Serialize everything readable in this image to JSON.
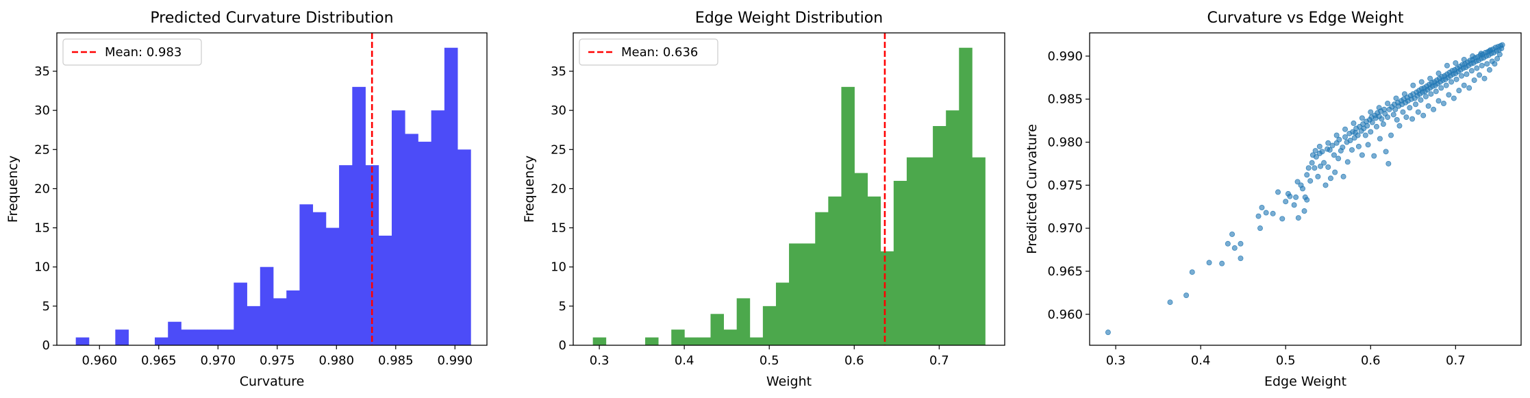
{
  "chart_data": [
    {
      "type": "bar",
      "title": "Predicted Curvature Distribution",
      "xlabel": "Curvature",
      "ylabel": "Frequency",
      "xlim": [
        0.9564,
        0.9927
      ],
      "ylim": [
        0,
        39.9
      ],
      "xticks": [
        "0.960",
        "0.965",
        "0.970",
        "0.975",
        "0.980",
        "0.985",
        "0.990"
      ],
      "yticks": [
        "0",
        "5",
        "10",
        "15",
        "20",
        "25",
        "30",
        "35"
      ],
      "bin_start": 0.958,
      "bin_width": 0.001111,
      "values": [
        1,
        0,
        0,
        2,
        0,
        0,
        1,
        3,
        2,
        2,
        2,
        2,
        8,
        5,
        10,
        6,
        7,
        18,
        17,
        15,
        23,
        33,
        23,
        14,
        30,
        27,
        26,
        30,
        38,
        25
      ],
      "color": "#4c4cf8",
      "mean": 0.983,
      "legend": "Mean: 0.983",
      "legend_position": "upper-left",
      "mean_color": "#ff0000"
    },
    {
      "type": "bar",
      "title": "Edge Weight Distribution",
      "xlabel": "Weight",
      "ylabel": "Frequency",
      "xlim": [
        0.2693,
        0.7771
      ],
      "ylim": [
        0,
        39.9
      ],
      "xticks": [
        "0.3",
        "0.4",
        "0.5",
        "0.6",
        "0.7"
      ],
      "yticks": [
        "0",
        "5",
        "10",
        "15",
        "20",
        "25",
        "30",
        "35"
      ],
      "bin_start": 0.2924,
      "bin_width": 0.01539,
      "values": [
        1,
        0,
        0,
        0,
        1,
        0,
        2,
        1,
        1,
        4,
        2,
        6,
        1,
        5,
        8,
        13,
        13,
        17,
        19,
        33,
        22,
        19,
        12,
        21,
        24,
        24,
        28,
        30,
        38,
        24
      ],
      "color": "#4ca84c",
      "mean": 0.636,
      "legend": "Mean: 0.636",
      "legend_position": "upper-left",
      "mean_color": "#ff0000"
    },
    {
      "type": "scatter",
      "title": "Curvature vs Edge Weight",
      "xlabel": "Edge Weight",
      "ylabel": "Predicted Curvature",
      "xlim": [
        0.2693,
        0.7771
      ],
      "ylim": [
        0.9564,
        0.9927
      ],
      "xticks": [
        "0.3",
        "0.4",
        "0.5",
        "0.6",
        "0.7"
      ],
      "yticks": [
        "0.960",
        "0.965",
        "0.970",
        "0.975",
        "0.980",
        "0.985",
        "0.990"
      ],
      "color": "#1f77b4",
      "points": [
        [
          0.291,
          0.9579
        ],
        [
          0.364,
          0.9614
        ],
        [
          0.383,
          0.9622
        ],
        [
          0.39,
          0.9649
        ],
        [
          0.41,
          0.966
        ],
        [
          0.425,
          0.9659
        ],
        [
          0.432,
          0.9682
        ],
        [
          0.437,
          0.9693
        ],
        [
          0.44,
          0.9677
        ],
        [
          0.447,
          0.9665
        ],
        [
          0.447,
          0.9682
        ],
        [
          0.468,
          0.9714
        ],
        [
          0.47,
          0.97
        ],
        [
          0.472,
          0.9724
        ],
        [
          0.477,
          0.9718
        ],
        [
          0.485,
          0.9717
        ],
        [
          0.491,
          0.9742
        ],
        [
          0.496,
          0.9711
        ],
        [
          0.5,
          0.9731
        ],
        [
          0.503,
          0.974
        ],
        [
          0.505,
          0.9737
        ],
        [
          0.51,
          0.9727
        ],
        [
          0.512,
          0.9736
        ],
        [
          0.514,
          0.9754
        ],
        [
          0.515,
          0.9712
        ],
        [
          0.518,
          0.975
        ],
        [
          0.52,
          0.9746
        ],
        [
          0.522,
          0.972
        ],
        [
          0.523,
          0.9736
        ],
        [
          0.525,
          0.9733
        ],
        [
          0.525,
          0.9762
        ],
        [
          0.527,
          0.977
        ],
        [
          0.529,
          0.9755
        ],
        [
          0.531,
          0.9776
        ],
        [
          0.532,
          0.9785
        ],
        [
          0.534,
          0.977
        ],
        [
          0.536,
          0.9783
        ],
        [
          0.538,
          0.976
        ],
        [
          0.54,
          0.9787
        ],
        [
          0.541,
          0.9772
        ],
        [
          0.543,
          0.9789
        ],
        [
          0.545,
          0.9776
        ],
        [
          0.547,
          0.975
        ],
        [
          0.549,
          0.9792
        ],
        [
          0.55,
          0.9771
        ],
        [
          0.552,
          0.9791
        ],
        [
          0.553,
          0.9758
        ],
        [
          0.555,
          0.9796
        ],
        [
          0.557,
          0.9785
        ],
        [
          0.558,
          0.9765
        ],
        [
          0.56,
          0.9799
        ],
        [
          0.562,
          0.9781
        ],
        [
          0.563,
          0.9803
        ],
        [
          0.565,
          0.979
        ],
        [
          0.567,
          0.9794
        ],
        [
          0.568,
          0.976
        ],
        [
          0.57,
          0.9806
        ],
        [
          0.572,
          0.98
        ],
        [
          0.573,
          0.9777
        ],
        [
          0.575,
          0.981
        ],
        [
          0.576,
          0.9802
        ],
        [
          0.578,
          0.9791
        ],
        [
          0.579,
          0.9812
        ],
        [
          0.581,
          0.9805
        ],
        [
          0.582,
          0.9811
        ],
        [
          0.583,
          0.9816
        ],
        [
          0.585,
          0.9808
        ],
        [
          0.586,
          0.9795
        ],
        [
          0.587,
          0.9818
        ],
        [
          0.589,
          0.9813
        ],
        [
          0.59,
          0.9785
        ],
        [
          0.591,
          0.9821
        ],
        [
          0.592,
          0.9816
        ],
        [
          0.594,
          0.9808
        ],
        [
          0.595,
          0.9824
        ],
        [
          0.596,
          0.9819
        ],
        [
          0.597,
          0.9797
        ],
        [
          0.599,
          0.9826
        ],
        [
          0.6,
          0.9812
        ],
        [
          0.601,
          0.9829
        ],
        [
          0.602,
          0.9823
        ],
        [
          0.604,
          0.9784
        ],
        [
          0.605,
          0.9831
        ],
        [
          0.606,
          0.9828
        ],
        [
          0.607,
          0.9818
        ],
        [
          0.608,
          0.9834
        ],
        [
          0.61,
          0.983
        ],
        [
          0.611,
          0.9804
        ],
        [
          0.612,
          0.9836
        ],
        [
          0.613,
          0.9827
        ],
        [
          0.615,
          0.9821
        ],
        [
          0.616,
          0.9838
        ],
        [
          0.617,
          0.9833
        ],
        [
          0.618,
          0.9789
        ],
        [
          0.62,
          0.9829
        ],
        [
          0.621,
          0.9775
        ],
        [
          0.622,
          0.9838
        ],
        [
          0.624,
          0.9808
        ],
        [
          0.625,
          0.9841
        ],
        [
          0.627,
          0.9832
        ],
        [
          0.628,
          0.9844
        ],
        [
          0.629,
          0.9838
        ],
        [
          0.631,
          0.9826
        ],
        [
          0.632,
          0.9846
        ],
        [
          0.633,
          0.9842
        ],
        [
          0.634,
          0.9819
        ],
        [
          0.636,
          0.9848
        ],
        [
          0.637,
          0.9844
        ],
        [
          0.638,
          0.9835
        ],
        [
          0.639,
          0.985
        ],
        [
          0.641,
          0.9846
        ],
        [
          0.642,
          0.9829
        ],
        [
          0.643,
          0.9852
        ],
        [
          0.644,
          0.9848
        ],
        [
          0.646,
          0.984
        ],
        [
          0.647,
          0.9854
        ],
        [
          0.648,
          0.985
        ],
        [
          0.649,
          0.9827
        ],
        [
          0.65,
          0.9856
        ],
        [
          0.652,
          0.9851
        ],
        [
          0.653,
          0.9844
        ],
        [
          0.654,
          0.9858
        ],
        [
          0.655,
          0.9854
        ],
        [
          0.656,
          0.9835
        ],
        [
          0.657,
          0.986
        ],
        [
          0.658,
          0.9856
        ],
        [
          0.659,
          0.9849
        ],
        [
          0.66,
          0.9862
        ],
        [
          0.661,
          0.9858
        ],
        [
          0.662,
          0.9831
        ],
        [
          0.663,
          0.9863
        ],
        [
          0.664,
          0.9859
        ],
        [
          0.665,
          0.9853
        ],
        [
          0.666,
          0.9865
        ],
        [
          0.667,
          0.9861
        ],
        [
          0.668,
          0.9842
        ],
        [
          0.669,
          0.9867
        ],
        [
          0.67,
          0.9863
        ],
        [
          0.671,
          0.9856
        ],
        [
          0.672,
          0.9869
        ],
        [
          0.673,
          0.9865
        ],
        [
          0.674,
          0.9838
        ],
        [
          0.675,
          0.987
        ],
        [
          0.676,
          0.9866
        ],
        [
          0.677,
          0.9859
        ],
        [
          0.678,
          0.9872
        ],
        [
          0.679,
          0.9868
        ],
        [
          0.68,
          0.9848
        ],
        [
          0.681,
          0.9874
        ],
        [
          0.682,
          0.987
        ],
        [
          0.683,
          0.9863
        ],
        [
          0.684,
          0.9876
        ],
        [
          0.685,
          0.9872
        ],
        [
          0.686,
          0.9845
        ],
        [
          0.687,
          0.9877
        ],
        [
          0.688,
          0.9873
        ],
        [
          0.689,
          0.9866
        ],
        [
          0.69,
          0.9879
        ],
        [
          0.691,
          0.9875
        ],
        [
          0.692,
          0.9855
        ],
        [
          0.693,
          0.9881
        ],
        [
          0.694,
          0.9877
        ],
        [
          0.695,
          0.987
        ],
        [
          0.696,
          0.9883
        ],
        [
          0.697,
          0.9879
        ],
        [
          0.698,
          0.9851
        ],
        [
          0.699,
          0.9884
        ],
        [
          0.7,
          0.988
        ],
        [
          0.701,
          0.9873
        ],
        [
          0.702,
          0.9886
        ],
        [
          0.703,
          0.9882
        ],
        [
          0.704,
          0.986
        ],
        [
          0.705,
          0.9888
        ],
        [
          0.706,
          0.9884
        ],
        [
          0.707,
          0.9877
        ],
        [
          0.708,
          0.989
        ],
        [
          0.709,
          0.9886
        ],
        [
          0.71,
          0.9866
        ],
        [
          0.711,
          0.9891
        ],
        [
          0.712,
          0.9887
        ],
        [
          0.713,
          0.9879
        ],
        [
          0.714,
          0.9893
        ],
        [
          0.715,
          0.9889
        ],
        [
          0.716,
          0.9863
        ],
        [
          0.717,
          0.9895
        ],
        [
          0.718,
          0.9891
        ],
        [
          0.719,
          0.9883
        ],
        [
          0.72,
          0.9896
        ],
        [
          0.721,
          0.9892
        ],
        [
          0.722,
          0.9872
        ],
        [
          0.723,
          0.9898
        ],
        [
          0.724,
          0.9894
        ],
        [
          0.725,
          0.9886
        ],
        [
          0.726,
          0.9899
        ],
        [
          0.727,
          0.9895
        ],
        [
          0.728,
          0.9878
        ],
        [
          0.729,
          0.9901
        ],
        [
          0.73,
          0.9897
        ],
        [
          0.731,
          0.9889
        ],
        [
          0.732,
          0.9902
        ],
        [
          0.733,
          0.9898
        ],
        [
          0.734,
          0.9874
        ],
        [
          0.735,
          0.9904
        ],
        [
          0.736,
          0.99
        ],
        [
          0.737,
          0.9891
        ],
        [
          0.738,
          0.9905
        ],
        [
          0.739,
          0.9901
        ],
        [
          0.74,
          0.9884
        ],
        [
          0.741,
          0.9907
        ],
        [
          0.742,
          0.9903
        ],
        [
          0.743,
          0.9894
        ],
        [
          0.744,
          0.9908
        ],
        [
          0.745,
          0.9904
        ],
        [
          0.746,
          0.9891
        ],
        [
          0.747,
          0.991
        ],
        [
          0.748,
          0.9906
        ],
        [
          0.749,
          0.9897
        ],
        [
          0.75,
          0.9911
        ],
        [
          0.751,
          0.9907
        ],
        [
          0.752,
          0.9902
        ],
        [
          0.753,
          0.9912
        ],
        [
          0.754,
          0.9909
        ],
        [
          0.755,
          0.9913
        ],
        [
          0.69,
          0.9889
        ],
        [
          0.7,
          0.9892
        ],
        [
          0.71,
          0.9896
        ],
        [
          0.72,
          0.99
        ],
        [
          0.73,
          0.9903
        ],
        [
          0.74,
          0.9906
        ],
        [
          0.65,
          0.9866
        ],
        [
          0.66,
          0.987
        ],
        [
          0.67,
          0.9874
        ],
        [
          0.68,
          0.988
        ],
        [
          0.6,
          0.9835
        ],
        [
          0.61,
          0.984
        ],
        [
          0.62,
          0.9845
        ],
        [
          0.63,
          0.9851
        ],
        [
          0.64,
          0.9856
        ],
        [
          0.58,
          0.9822
        ],
        [
          0.59,
          0.9828
        ],
        [
          0.57,
          0.9815
        ],
        [
          0.56,
          0.9808
        ],
        [
          0.55,
          0.9799
        ],
        [
          0.54,
          0.9795
        ],
        [
          0.535,
          0.979
        ]
      ]
    }
  ]
}
